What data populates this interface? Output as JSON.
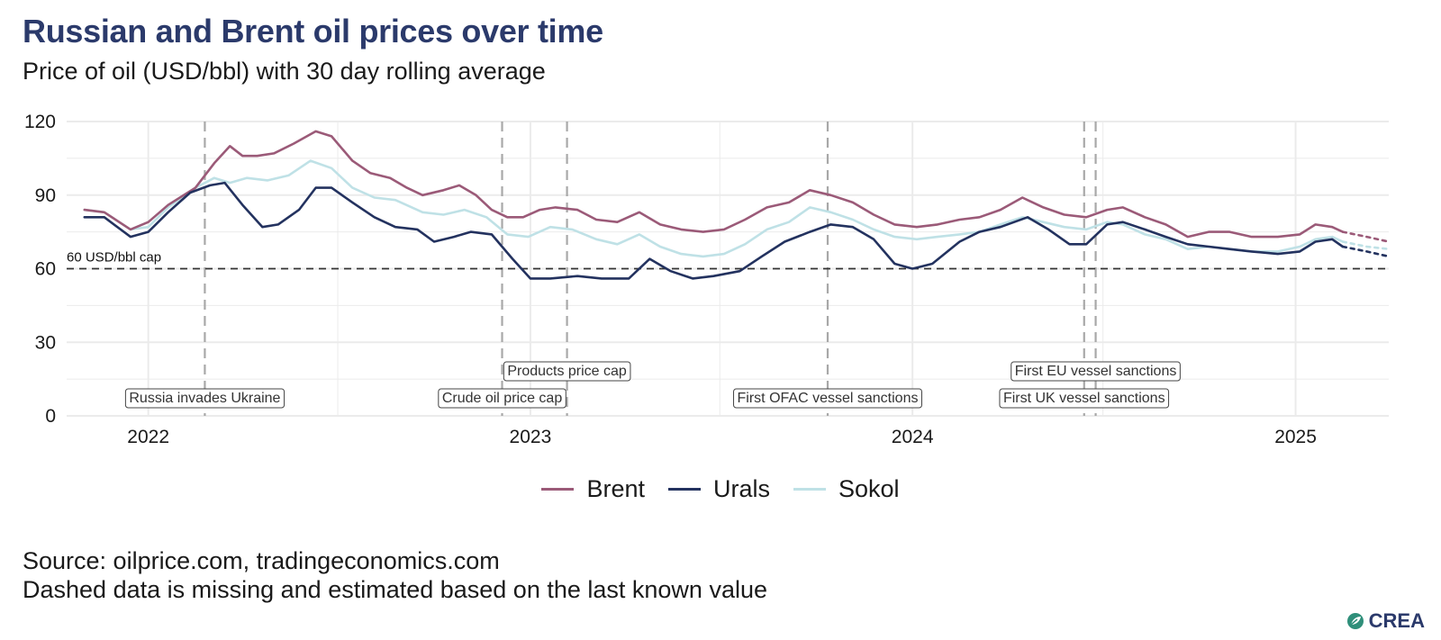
{
  "title": "Russian and Brent oil prices over time",
  "subtitle": "Price of oil (USD/bbl) with 30 day rolling average",
  "source": "Source: oilprice.com, tradingeconomics.com",
  "note": "Dashed data is missing and estimated based on the last known value",
  "logo": {
    "text": "CREA",
    "icon": "crea-leaf-icon"
  },
  "colors": {
    "Brent": "#9b5a78",
    "Urals": "#23325f",
    "Sokol": "#bfe1e6",
    "grid": "#ebebeb",
    "event": "#a8a8a8",
    "cap": "#333333"
  },
  "chart_data": {
    "type": "line",
    "x_unit": "date",
    "xlim": [
      "2021-10-15",
      "2025-03-31"
    ],
    "ylim": [
      0,
      120
    ],
    "yticks": [
      0,
      30,
      60,
      90,
      120
    ],
    "ytick_labels": [
      "0",
      "30",
      "60",
      "90",
      "120"
    ],
    "xticks": [
      "2022-01-01",
      "2023-01-01",
      "2024-01-01",
      "2025-01-01"
    ],
    "xtick_labels": [
      "2022",
      "2023",
      "2024",
      "2025"
    ],
    "grid": true,
    "legend_position": "bottom",
    "xlabel": "",
    "ylabel": "",
    "reference_line": {
      "value": 60,
      "label": "60 USD/bbl cap"
    },
    "events": [
      {
        "date": "2022-02-24",
        "label": "Russia invades Ukraine",
        "row": 1
      },
      {
        "date": "2022-12-05",
        "label": "Crude oil price cap",
        "row": 1
      },
      {
        "date": "2023-02-05",
        "label": "Products price cap",
        "row": 2
      },
      {
        "date": "2023-10-12",
        "label": "First OFAC vessel sanctions",
        "row": 1
      },
      {
        "date": "2024-06-13",
        "label": "First UK vessel sanctions",
        "row": 1
      },
      {
        "date": "2024-06-24",
        "label": "First EU vessel sanctions",
        "row": 2
      }
    ],
    "estimated_from": "2025-02-15",
    "series": [
      {
        "name": "Brent",
        "points": [
          [
            "2021-11-01",
            84
          ],
          [
            "2021-11-20",
            83
          ],
          [
            "2021-12-15",
            76
          ],
          [
            "2022-01-01",
            79
          ],
          [
            "2022-01-20",
            86
          ],
          [
            "2022-02-15",
            93
          ],
          [
            "2022-03-05",
            103
          ],
          [
            "2022-03-20",
            110
          ],
          [
            "2022-04-01",
            106
          ],
          [
            "2022-04-15",
            106
          ],
          [
            "2022-05-01",
            107
          ],
          [
            "2022-05-20",
            111
          ],
          [
            "2022-06-10",
            116
          ],
          [
            "2022-06-25",
            114
          ],
          [
            "2022-07-15",
            104
          ],
          [
            "2022-08-01",
            99
          ],
          [
            "2022-08-20",
            97
          ],
          [
            "2022-09-05",
            93
          ],
          [
            "2022-09-20",
            90
          ],
          [
            "2022-10-10",
            92
          ],
          [
            "2022-10-25",
            94
          ],
          [
            "2022-11-10",
            90
          ],
          [
            "2022-11-25",
            84
          ],
          [
            "2022-12-10",
            81
          ],
          [
            "2022-12-25",
            81
          ],
          [
            "2023-01-10",
            84
          ],
          [
            "2023-01-25",
            85
          ],
          [
            "2023-02-15",
            84
          ],
          [
            "2023-03-05",
            80
          ],
          [
            "2023-03-25",
            79
          ],
          [
            "2023-04-15",
            83
          ],
          [
            "2023-05-05",
            78
          ],
          [
            "2023-05-25",
            76
          ],
          [
            "2023-06-15",
            75
          ],
          [
            "2023-07-05",
            76
          ],
          [
            "2023-07-25",
            80
          ],
          [
            "2023-08-15",
            85
          ],
          [
            "2023-09-05",
            87
          ],
          [
            "2023-09-25",
            92
          ],
          [
            "2023-10-15",
            90
          ],
          [
            "2023-11-05",
            87
          ],
          [
            "2023-11-25",
            82
          ],
          [
            "2023-12-15",
            78
          ],
          [
            "2024-01-05",
            77
          ],
          [
            "2024-01-25",
            78
          ],
          [
            "2024-02-15",
            80
          ],
          [
            "2024-03-05",
            81
          ],
          [
            "2024-03-25",
            84
          ],
          [
            "2024-04-15",
            89
          ],
          [
            "2024-05-05",
            85
          ],
          [
            "2024-05-25",
            82
          ],
          [
            "2024-06-15",
            81
          ],
          [
            "2024-07-05",
            84
          ],
          [
            "2024-07-20",
            85
          ],
          [
            "2024-08-10",
            81
          ],
          [
            "2024-08-30",
            78
          ],
          [
            "2024-09-20",
            73
          ],
          [
            "2024-10-10",
            75
          ],
          [
            "2024-10-30",
            75
          ],
          [
            "2024-11-20",
            73
          ],
          [
            "2024-12-15",
            73
          ],
          [
            "2025-01-05",
            74
          ],
          [
            "2025-01-20",
            78
          ],
          [
            "2025-02-05",
            77
          ],
          [
            "2025-02-15",
            75
          ],
          [
            "2025-03-10",
            73
          ],
          [
            "2025-03-31",
            71
          ]
        ]
      },
      {
        "name": "Urals",
        "points": [
          [
            "2021-11-01",
            81
          ],
          [
            "2021-11-20",
            81
          ],
          [
            "2021-12-15",
            73
          ],
          [
            "2022-01-01",
            75
          ],
          [
            "2022-01-20",
            83
          ],
          [
            "2022-02-10",
            91
          ],
          [
            "2022-03-01",
            94
          ],
          [
            "2022-03-15",
            95
          ],
          [
            "2022-04-01",
            86
          ],
          [
            "2022-04-20",
            77
          ],
          [
            "2022-05-05",
            78
          ],
          [
            "2022-05-25",
            84
          ],
          [
            "2022-06-10",
            93
          ],
          [
            "2022-06-25",
            93
          ],
          [
            "2022-07-15",
            87
          ],
          [
            "2022-08-05",
            81
          ],
          [
            "2022-08-25",
            77
          ],
          [
            "2022-09-15",
            76
          ],
          [
            "2022-10-01",
            71
          ],
          [
            "2022-10-20",
            73
          ],
          [
            "2022-11-05",
            75
          ],
          [
            "2022-11-25",
            74
          ],
          [
            "2022-12-15",
            64
          ],
          [
            "2023-01-01",
            56
          ],
          [
            "2023-01-20",
            56
          ],
          [
            "2023-02-15",
            57
          ],
          [
            "2023-03-10",
            56
          ],
          [
            "2023-04-05",
            56
          ],
          [
            "2023-04-25",
            64
          ],
          [
            "2023-05-15",
            59
          ],
          [
            "2023-06-05",
            56
          ],
          [
            "2023-06-25",
            57
          ],
          [
            "2023-07-20",
            59
          ],
          [
            "2023-08-10",
            65
          ],
          [
            "2023-09-01",
            71
          ],
          [
            "2023-09-25",
            75
          ],
          [
            "2023-10-15",
            78
          ],
          [
            "2023-11-05",
            77
          ],
          [
            "2023-11-25",
            72
          ],
          [
            "2023-12-15",
            62
          ],
          [
            "2024-01-01",
            60
          ],
          [
            "2024-01-20",
            62
          ],
          [
            "2024-02-15",
            71
          ],
          [
            "2024-03-05",
            75
          ],
          [
            "2024-03-25",
            77
          ],
          [
            "2024-04-20",
            81
          ],
          [
            "2024-05-10",
            76
          ],
          [
            "2024-05-30",
            70
          ],
          [
            "2024-06-15",
            70
          ],
          [
            "2024-07-05",
            78
          ],
          [
            "2024-07-20",
            79
          ],
          [
            "2024-08-10",
            76
          ],
          [
            "2024-08-30",
            73
          ],
          [
            "2024-09-20",
            70
          ],
          [
            "2024-10-10",
            69
          ],
          [
            "2024-10-30",
            68
          ],
          [
            "2024-11-20",
            67
          ],
          [
            "2024-12-15",
            66
          ],
          [
            "2025-01-05",
            67
          ],
          [
            "2025-01-20",
            71
          ],
          [
            "2025-02-05",
            72
          ],
          [
            "2025-02-15",
            69
          ],
          [
            "2025-03-10",
            67
          ],
          [
            "2025-03-31",
            65
          ]
        ]
      },
      {
        "name": "Sokol",
        "points": [
          [
            "2021-11-01",
            84
          ],
          [
            "2021-11-20",
            83
          ],
          [
            "2021-12-15",
            76
          ],
          [
            "2022-01-01",
            77
          ],
          [
            "2022-01-20",
            85
          ],
          [
            "2022-02-15",
            93
          ],
          [
            "2022-03-05",
            97
          ],
          [
            "2022-03-20",
            95
          ],
          [
            "2022-04-05",
            97
          ],
          [
            "2022-04-25",
            96
          ],
          [
            "2022-05-15",
            98
          ],
          [
            "2022-06-05",
            104
          ],
          [
            "2022-06-25",
            101
          ],
          [
            "2022-07-15",
            93
          ],
          [
            "2022-08-05",
            89
          ],
          [
            "2022-08-25",
            88
          ],
          [
            "2022-09-20",
            83
          ],
          [
            "2022-10-10",
            82
          ],
          [
            "2022-10-30",
            84
          ],
          [
            "2022-11-20",
            81
          ],
          [
            "2022-12-10",
            74
          ],
          [
            "2022-12-30",
            73
          ],
          [
            "2023-01-20",
            77
          ],
          [
            "2023-02-10",
            76
          ],
          [
            "2023-03-05",
            72
          ],
          [
            "2023-03-25",
            70
          ],
          [
            "2023-04-15",
            74
          ],
          [
            "2023-05-05",
            69
          ],
          [
            "2023-05-25",
            66
          ],
          [
            "2023-06-15",
            65
          ],
          [
            "2023-07-05",
            66
          ],
          [
            "2023-07-25",
            70
          ],
          [
            "2023-08-15",
            76
          ],
          [
            "2023-09-05",
            79
          ],
          [
            "2023-09-25",
            85
          ],
          [
            "2023-10-15",
            83
          ],
          [
            "2023-11-05",
            80
          ],
          [
            "2023-11-25",
            76
          ],
          [
            "2023-12-15",
            73
          ],
          [
            "2024-01-05",
            72
          ],
          [
            "2024-01-25",
            73
          ],
          [
            "2024-02-15",
            74
          ],
          [
            "2024-03-05",
            75
          ],
          [
            "2024-03-25",
            78
          ],
          [
            "2024-04-15",
            81
          ],
          [
            "2024-05-05",
            79
          ],
          [
            "2024-05-25",
            77
          ],
          [
            "2024-06-15",
            76
          ],
          [
            "2024-07-05",
            79
          ],
          [
            "2024-07-20",
            78
          ],
          [
            "2024-08-10",
            74
          ],
          [
            "2024-08-30",
            72
          ],
          [
            "2024-09-20",
            68
          ],
          [
            "2024-10-10",
            69
          ],
          [
            "2024-10-30",
            68
          ],
          [
            "2024-11-20",
            67
          ],
          [
            "2024-12-15",
            67
          ],
          [
            "2025-01-05",
            69
          ],
          [
            "2025-01-20",
            72
          ],
          [
            "2025-02-05",
            73
          ],
          [
            "2025-02-15",
            71
          ],
          [
            "2025-03-10",
            69
          ],
          [
            "2025-03-31",
            68
          ]
        ]
      }
    ]
  }
}
